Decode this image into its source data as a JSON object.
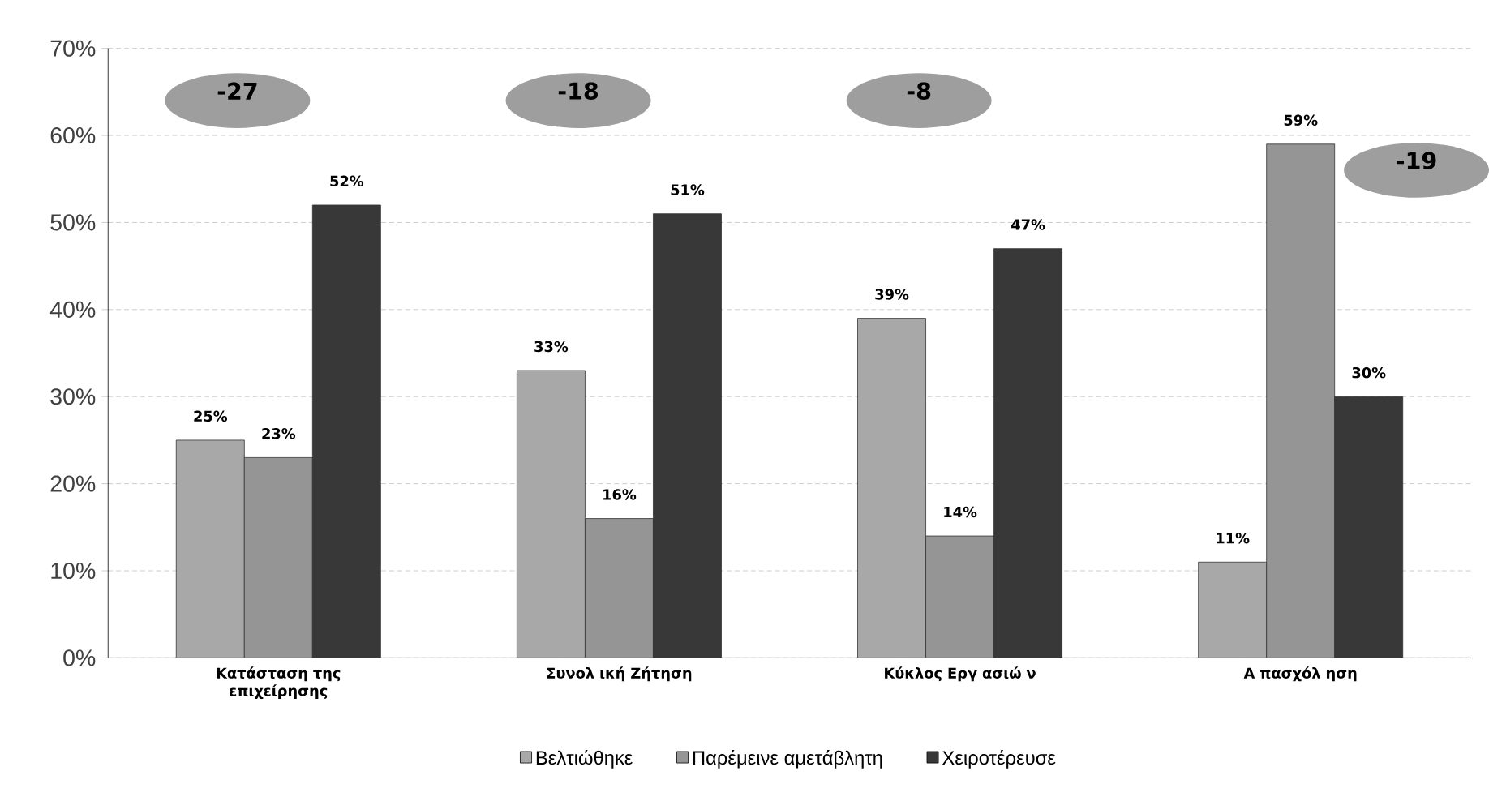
{
  "chart_data": {
    "type": "bar",
    "categories": [
      "Κατάσταση της επιχείρησης",
      "Συνολ ική Ζήτηση",
      "Κύκλος Εργ ασιώ ν",
      "Α πασχόλ ηση"
    ],
    "series": [
      {
        "name": "Βελτιώθηκε",
        "color": "#a8a8a8",
        "values": [
          25,
          33,
          39,
          11
        ],
        "value_labels": [
          "25%",
          "33%",
          "39%",
          "11%"
        ]
      },
      {
        "name": "Παρέμεινε αμετάβλητη",
        "color": "#959595",
        "values": [
          23,
          16,
          14,
          59
        ],
        "value_labels": [
          "23%",
          "16%",
          "14%",
          "59%"
        ]
      },
      {
        "name": "Χειροτέρευσε",
        "color": "#383838",
        "values": [
          52,
          51,
          47,
          30
        ],
        "value_labels": [
          "52%",
          "51%",
          "47%",
          "30%"
        ]
      }
    ],
    "ylim": [
      0,
      70
    ],
    "yticks": [
      {
        "value": 0,
        "label": "0%"
      },
      {
        "value": 10,
        "label": "10%"
      },
      {
        "value": 20,
        "label": "20%"
      },
      {
        "value": 30,
        "label": "30%"
      },
      {
        "value": 40,
        "label": "40%"
      },
      {
        "value": 50,
        "label": "50%"
      },
      {
        "value": 60,
        "label": "60%"
      },
      {
        "value": 70,
        "label": "70%"
      }
    ],
    "grid": "y",
    "legend": "bottom",
    "annotations": [
      "-27",
      "-18",
      "-8",
      "-19"
    ]
  }
}
